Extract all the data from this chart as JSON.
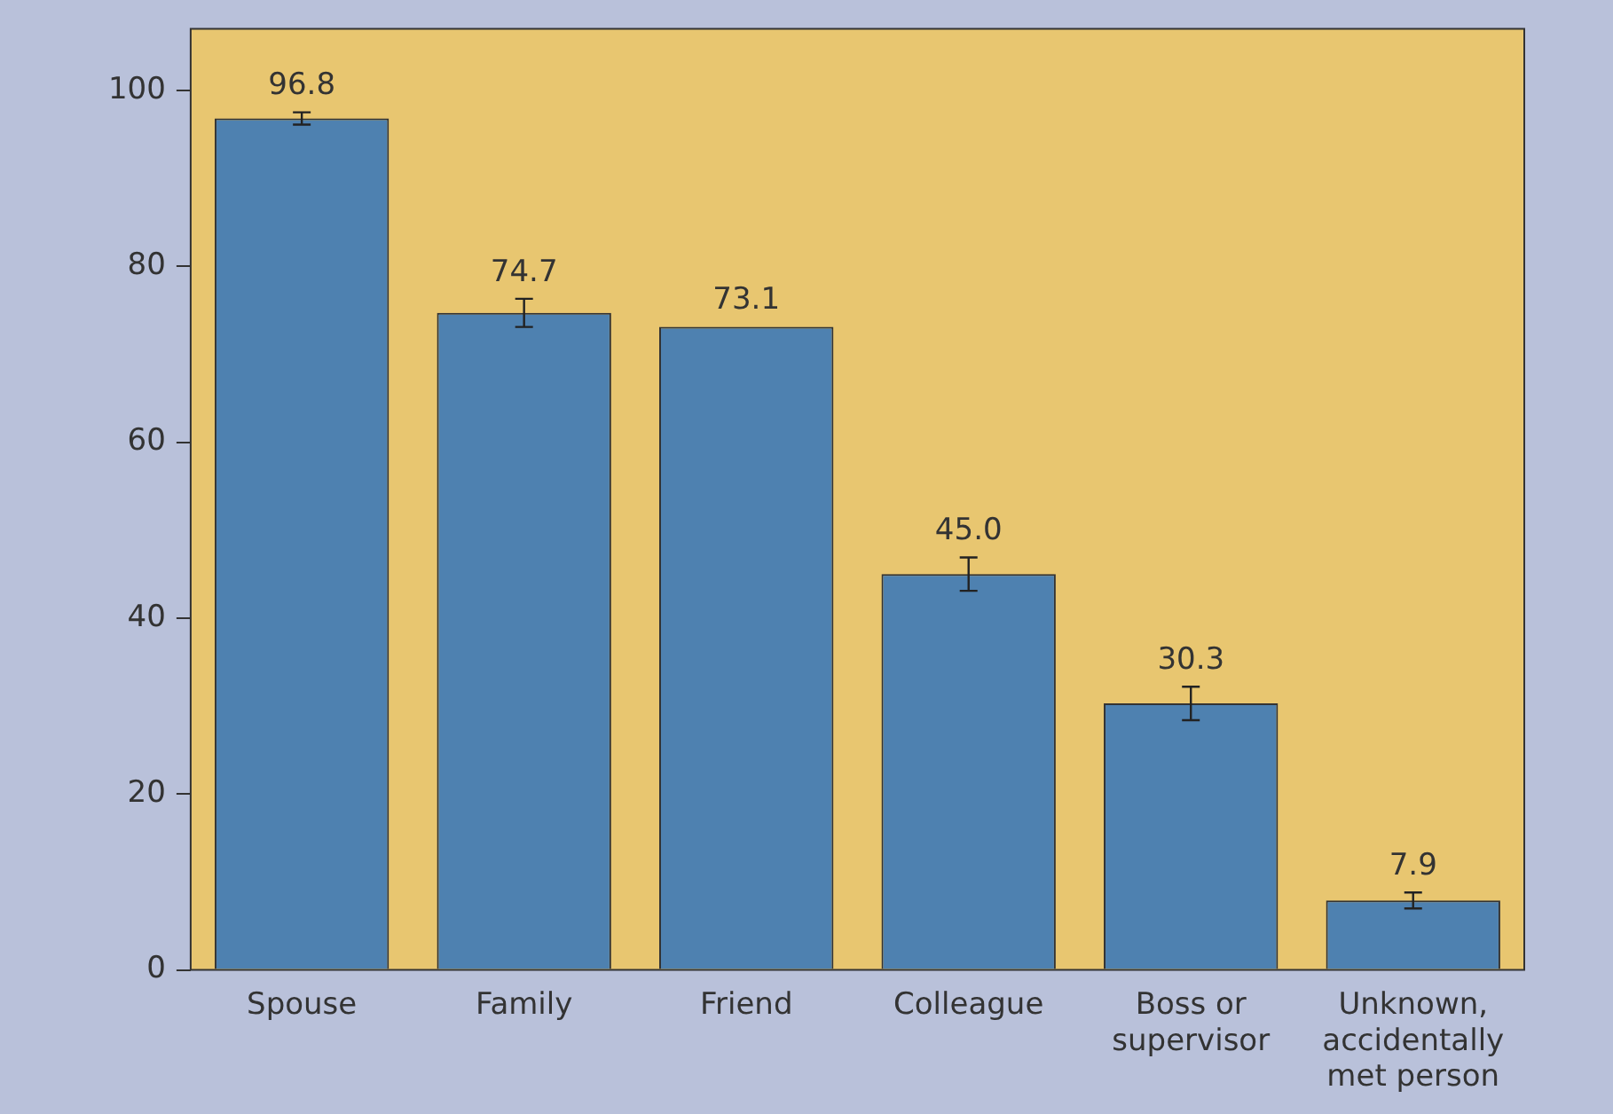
{
  "chart_data": {
    "type": "bar",
    "categories": [
      "Spouse",
      "Family",
      "Friend",
      "Colleague",
      "Boss or supervisor",
      "Unknown, accidentally met person"
    ],
    "values": [
      96.8,
      74.7,
      73.1,
      45.0,
      30.3,
      7.9
    ],
    "errors": [
      0.7,
      1.6,
      null,
      1.9,
      1.9,
      0.9
    ],
    "color": "#4e81b0",
    "value_labels": [
      "96.8",
      "74.7",
      "73.1",
      "45.0",
      "30.3",
      "7.9"
    ],
    "ylim": [
      0,
      107
    ],
    "yticks": [
      0,
      20,
      40,
      60,
      80,
      100
    ],
    "grid": false
  }
}
